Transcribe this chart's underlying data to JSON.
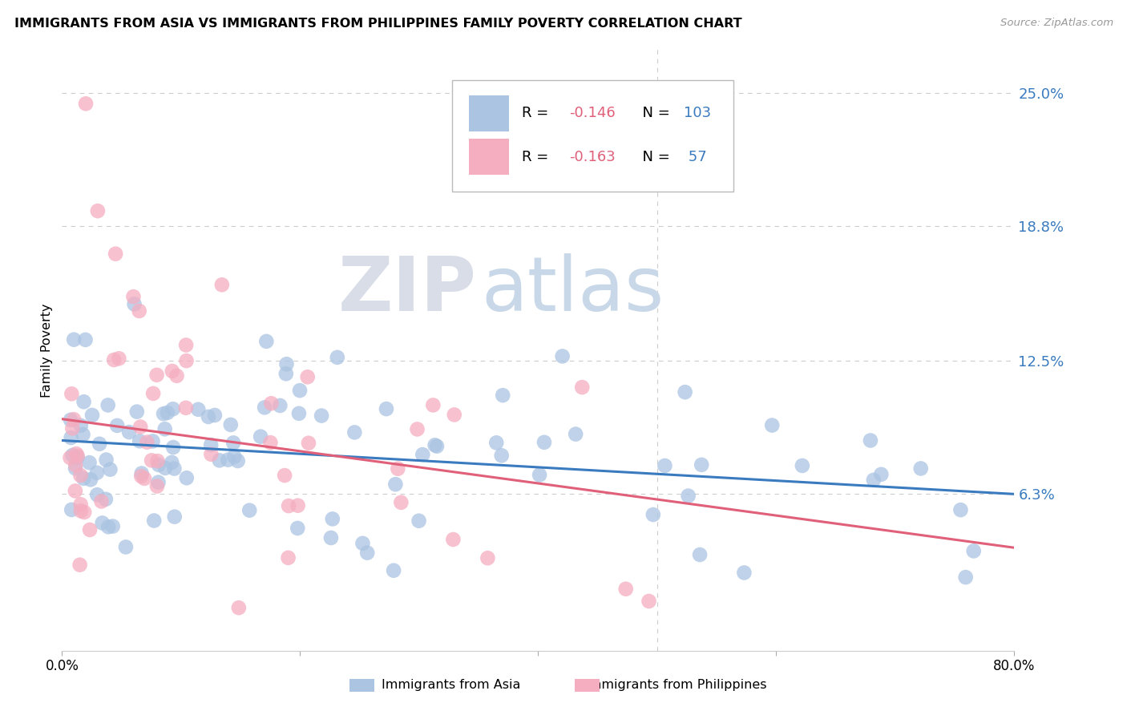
{
  "title": "IMMIGRANTS FROM ASIA VS IMMIGRANTS FROM PHILIPPINES FAMILY POVERTY CORRELATION CHART",
  "source": "Source: ZipAtlas.com",
  "ylabel": "Family Poverty",
  "y_ticks": [
    0.063,
    0.125,
    0.188,
    0.25
  ],
  "y_tick_labels": [
    "6.3%",
    "12.5%",
    "18.8%",
    "25.0%"
  ],
  "xlim": [
    0.0,
    0.8
  ],
  "ylim": [
    -0.01,
    0.27
  ],
  "asia_R": -0.146,
  "asia_N": 103,
  "phil_R": -0.163,
  "phil_N": 57,
  "asia_color": "#aac4e2",
  "asia_line_color": "#3a7bbf",
  "phil_color": "#f5adc0",
  "phil_line_color": "#e0607a",
  "watermark_zip": "ZIP",
  "watermark_atlas": "atlas",
  "background_color": "#ffffff",
  "legend_R_color": "#e0607a",
  "legend_N_color": "#3a7bbf",
  "asia_line_y0": 0.088,
  "asia_line_y1": 0.063,
  "phil_line_y0": 0.098,
  "phil_line_y1": 0.038
}
